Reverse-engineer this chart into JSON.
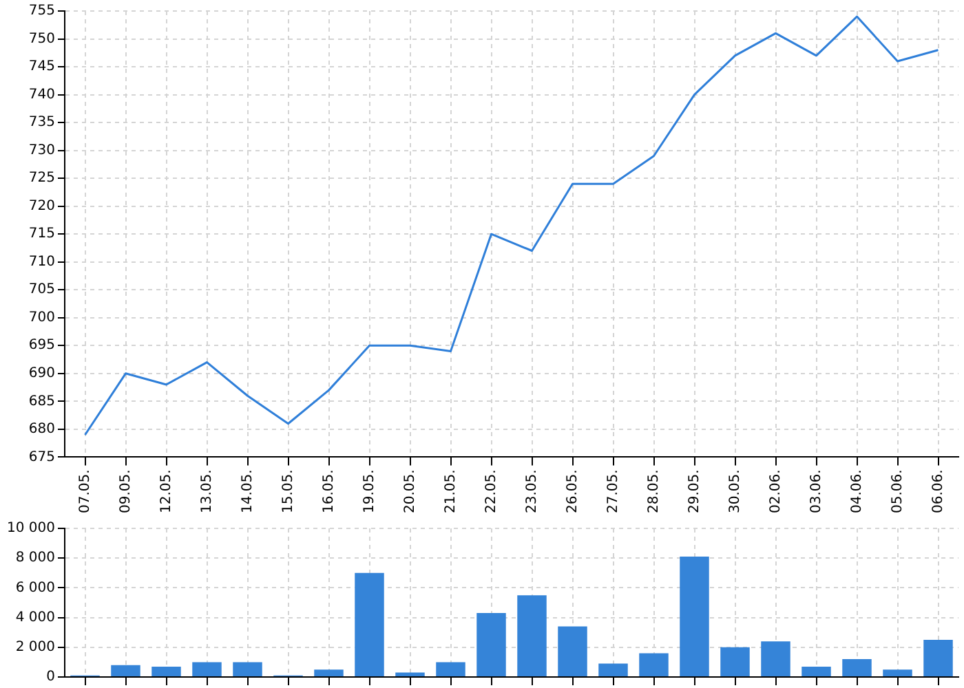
{
  "chart_data": [
    {
      "type": "line",
      "categories": [
        "07.05.",
        "09.05.",
        "12.05.",
        "13.05.",
        "14.05.",
        "15.05.",
        "16.05.",
        "19.05.",
        "20.05.",
        "21.05.",
        "22.05.",
        "23.05.",
        "26.05.",
        "27.05.",
        "28.05.",
        "29.05.",
        "30.05.",
        "02.06.",
        "03.06.",
        "04.06.",
        "05.06.",
        "06.06."
      ],
      "series": [
        {
          "color": "#2f7fd9",
          "values": [
            679,
            690,
            688,
            692,
            686,
            681,
            687,
            695,
            695,
            694,
            715,
            712,
            724,
            724,
            729,
            740,
            747,
            751,
            747,
            754,
            746,
            748
          ]
        }
      ],
      "ylim": [
        675,
        755
      ],
      "yticks": [
        675,
        680,
        685,
        690,
        695,
        700,
        705,
        710,
        715,
        720,
        725,
        730,
        735,
        740,
        745,
        750,
        755
      ],
      "grid": true,
      "legend": false,
      "marker": "none",
      "line_style": "solid"
    },
    {
      "type": "bar",
      "categories": [
        "07.05.",
        "09.05.",
        "12.05.",
        "13.05.",
        "14.05.",
        "15.05.",
        "16.05.",
        "19.05.",
        "20.05.",
        "21.05.",
        "22.05.",
        "23.05.",
        "26.05.",
        "27.05.",
        "28.05.",
        "29.05.",
        "30.05.",
        "02.06.",
        "03.06.",
        "04.06.",
        "05.06.",
        "06.06."
      ],
      "series": [
        {
          "color": "#3584d8",
          "values": [
            100,
            800,
            700,
            1000,
            1000,
            100,
            500,
            7000,
            300,
            1000,
            4300,
            5500,
            3400,
            900,
            1600,
            8100,
            2000,
            2400,
            700,
            1200,
            500,
            2500
          ]
        }
      ],
      "ylim": [
        0,
        10000
      ],
      "yticks": [
        0,
        {
          "value": 2000,
          "label": "2 000"
        },
        {
          "value": 4000,
          "label": "4 000"
        },
        {
          "value": 6000,
          "label": "6 000"
        },
        {
          "value": 8000,
          "label": "8 000"
        },
        {
          "value": 10000,
          "label": "10 000"
        }
      ],
      "grid": true,
      "legend": false,
      "tick_labels": "y"
    }
  ]
}
